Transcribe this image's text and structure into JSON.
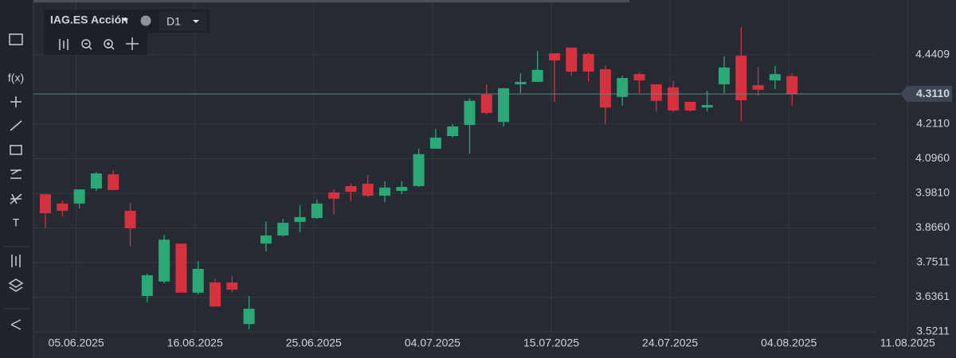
{
  "chart_data": {
    "type": "candlestick",
    "symbol": "IAG.ES",
    "instrument_type": "Acción",
    "timeframe": "D1",
    "x": [
      "03.06.2025",
      "04.06.2025",
      "05.06.2025",
      "06.06.2025",
      "09.06.2025",
      "10.06.2025",
      "11.06.2025",
      "12.06.2025",
      "13.06.2025",
      "16.06.2025",
      "17.06.2025",
      "18.06.2025",
      "19.06.2025",
      "20.06.2025",
      "23.06.2025",
      "24.06.2025",
      "25.06.2025",
      "26.06.2025",
      "27.06.2025",
      "30.06.2025",
      "01.07.2025",
      "02.07.2025",
      "03.07.2025",
      "04.07.2025",
      "07.07.2025",
      "08.07.2025",
      "09.07.2025",
      "10.07.2025",
      "11.07.2025",
      "14.07.2025",
      "15.07.2025",
      "16.07.2025",
      "17.07.2025",
      "18.07.2025",
      "21.07.2025",
      "22.07.2025",
      "23.07.2025",
      "24.07.2025",
      "25.07.2025",
      "28.07.2025",
      "29.07.2025",
      "30.07.2025",
      "31.07.2025",
      "01.08.2025",
      "04.08.2025"
    ],
    "open": [
      3.978,
      3.947,
      3.947,
      3.997,
      4.044,
      3.923,
      3.64,
      3.688,
      3.814,
      3.651,
      3.685,
      3.685,
      3.547,
      3.814,
      3.841,
      3.886,
      3.899,
      3.984,
      4.005,
      4.013,
      3.973,
      3.989,
      4.005,
      4.129,
      4.171,
      4.208,
      4.309,
      4.218,
      4.343,
      4.351,
      4.446,
      4.465,
      4.444,
      4.393,
      4.301,
      4.377,
      4.343,
      4.333,
      4.285,
      4.266,
      4.343,
      4.438,
      4.34,
      4.356,
      4.37
    ],
    "high": [
      3.978,
      3.957,
      3.994,
      4.052,
      4.057,
      3.949,
      3.714,
      3.843,
      3.814,
      3.756,
      3.698,
      3.706,
      3.64,
      3.888,
      3.896,
      3.941,
      3.96,
      3.994,
      4.013,
      4.042,
      4.021,
      4.021,
      4.129,
      4.195,
      4.211,
      4.296,
      4.343,
      4.33,
      4.38,
      4.454,
      4.446,
      4.465,
      4.449,
      4.406,
      4.372,
      4.383,
      4.343,
      4.354,
      4.285,
      4.322,
      4.436,
      4.533,
      4.401,
      4.404,
      4.38
    ],
    "low": [
      3.865,
      3.904,
      3.931,
      3.989,
      3.992,
      3.804,
      3.619,
      3.682,
      3.651,
      3.645,
      3.605,
      3.653,
      3.529,
      3.788,
      3.836,
      3.851,
      3.896,
      3.91,
      3.954,
      3.968,
      3.952,
      3.978,
      4.002,
      4.129,
      4.166,
      4.113,
      4.243,
      4.203,
      4.314,
      4.351,
      4.285,
      4.372,
      4.351,
      4.211,
      4.272,
      4.314,
      4.251,
      4.251,
      4.251,
      4.253,
      4.314,
      4.221,
      4.306,
      4.327,
      4.272
    ],
    "close": [
      3.915,
      3.923,
      3.994,
      4.047,
      3.992,
      3.865,
      3.709,
      3.827,
      3.651,
      3.73,
      3.605,
      3.661,
      3.598,
      3.841,
      3.883,
      3.902,
      3.947,
      3.963,
      3.986,
      3.973,
      4.0,
      4.002,
      4.111,
      4.166,
      4.203,
      4.288,
      4.248,
      4.33,
      4.351,
      4.391,
      4.422,
      4.385,
      4.385,
      4.266,
      4.364,
      4.356,
      4.288,
      4.256,
      4.256,
      4.274,
      4.399,
      4.29,
      4.325,
      4.377,
      4.311
    ],
    "up_color": "#2aa876",
    "down_color": "#d5313f",
    "ylim": [
      3.508,
      4.623
    ],
    "yticks": [
      3.5211,
      3.6361,
      3.7511,
      {
        "value": 3.866,
        "label": "3.8660"
      },
      {
        "value": 3.981,
        "label": "3.9810"
      },
      {
        "value": 4.096,
        "label": "4.0960"
      },
      {
        "value": 4.211,
        "label": "4.2110"
      },
      4.4409
    ],
    "xticks": [
      "05.06.2025",
      "16.06.2025",
      "25.06.2025",
      "04.07.2025",
      "15.07.2025",
      "24.07.2025",
      "04.08.2025",
      "11.08.2025"
    ],
    "last_price": {
      "value": 4.311,
      "label": "4.3110"
    },
    "grid": true
  }
}
